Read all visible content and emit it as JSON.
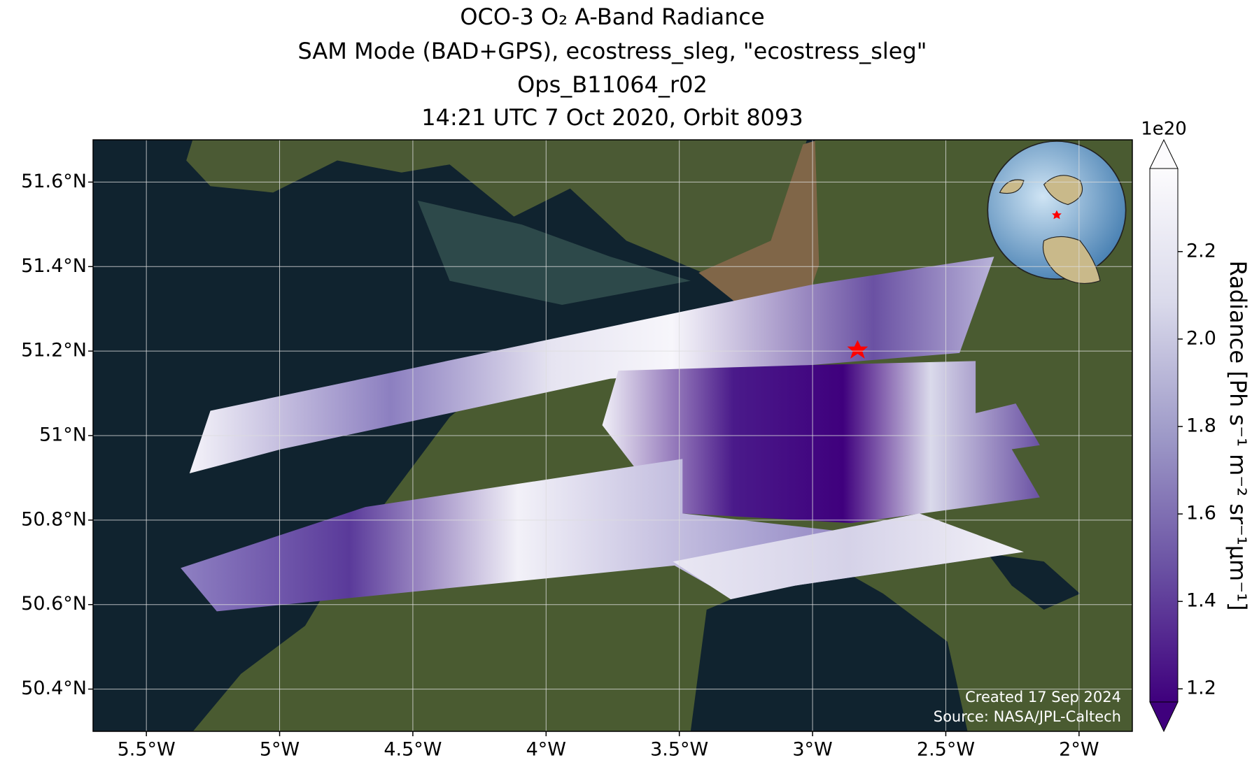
{
  "map": {
    "title": [
      "OCO-3 O₂ A-Band Radiance",
      "SAM Mode (BAD+GPS), ecostress_sleg, \"ecostress_sleg\"",
      "Ops_B11064_r02",
      "14:21 UTC 7 Oct 2020, Orbit 8093"
    ],
    "xlim": [
      -5.7,
      -1.8
    ],
    "xticks": [
      {
        "value": -5.5,
        "label": "5.5°W"
      },
      {
        "value": -5,
        "label": "5°W"
      },
      {
        "value": -4.5,
        "label": "4.5°W"
      },
      {
        "value": -4,
        "label": "4°W"
      },
      {
        "value": -3.5,
        "label": "3.5°W"
      },
      {
        "value": -3,
        "label": "3°W"
      },
      {
        "value": -2.5,
        "label": "2.5°W"
      },
      {
        "value": -2,
        "label": "2°W"
      }
    ],
    "ylim": [
      50.3,
      51.7
    ],
    "yticks": [
      {
        "value": 50.4,
        "label": "50.4°N"
      },
      {
        "value": 50.6,
        "label": "50.6°N"
      },
      {
        "value": 50.8,
        "label": "50.8°N"
      },
      {
        "value": 51,
        "label": "51°N"
      },
      {
        "value": 51.2,
        "label": "51.2°N"
      },
      {
        "value": 51.4,
        "label": "51.4°N"
      },
      {
        "value": 51.6,
        "label": "51.6°N"
      }
    ],
    "grid": true,
    "colorbar": {
      "label": "Radiance [Ph s⁻¹ m⁻² sr⁻¹μm⁻¹]",
      "exponent": "1e20",
      "lim": [
        1.17,
        2.39
      ],
      "ticks": [
        1.2,
        1.4,
        1.6,
        1.8,
        2.0,
        2.2
      ],
      "tick_labels": [
        "1.2",
        "1.4",
        "1.6",
        "1.8",
        "2.0",
        "2.2"
      ],
      "colors": [
        "#3f007d",
        "#6a51a3",
        "#9e9ac8",
        "#dadaeb",
        "#fcfbfd"
      ]
    },
    "credits": [
      "Created 17 Sep 2024",
      "Source: NASA/JPL-Caltech"
    ]
  }
}
